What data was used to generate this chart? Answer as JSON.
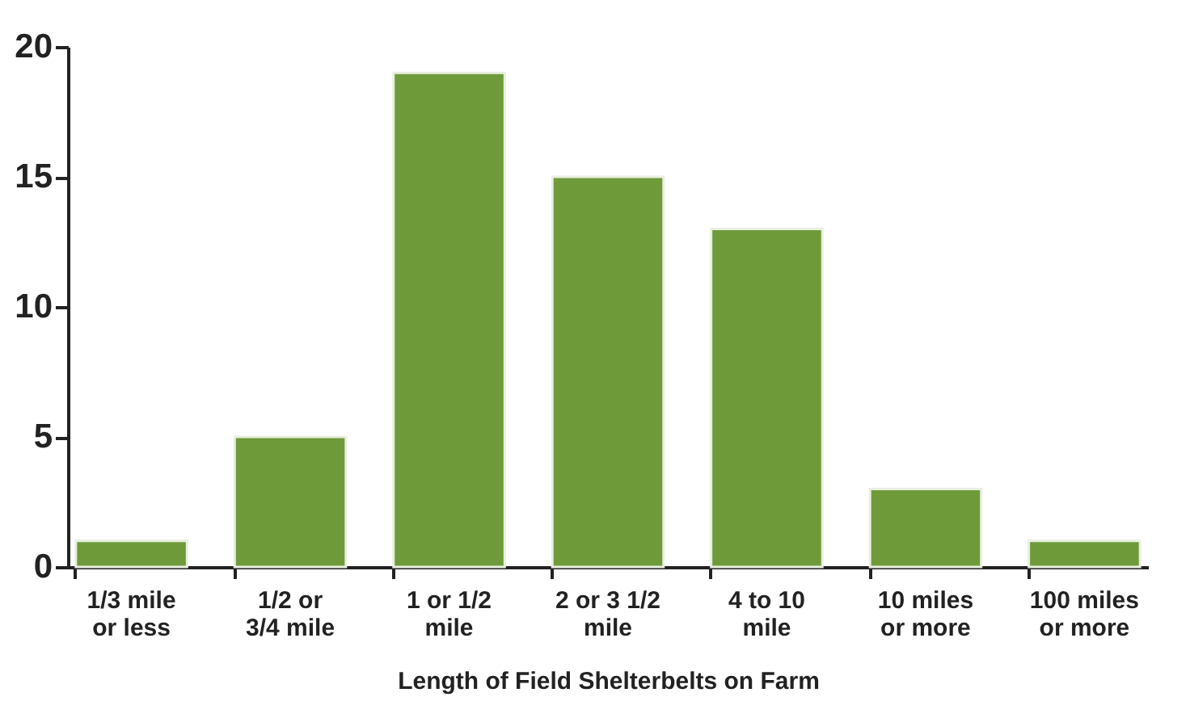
{
  "chart_data": {
    "type": "bar",
    "xlabel": "Length of Field Shelterbelts on Farm",
    "categories": [
      "1/3 mile\nor less",
      "1/2 or\n3/4 mile",
      "1 or 1/2\nmile",
      "2 or 3 1/2\nmile",
      "4 to 10\nmile",
      "10 miles\nor more",
      "100 miles\nor more"
    ],
    "values": [
      1,
      5,
      19,
      15,
      13,
      3,
      1
    ],
    "color": "#6f9a3a",
    "ylim": [
      0,
      20
    ],
    "yticks": [
      0,
      5,
      10,
      15,
      20
    ],
    "grid": false
  }
}
